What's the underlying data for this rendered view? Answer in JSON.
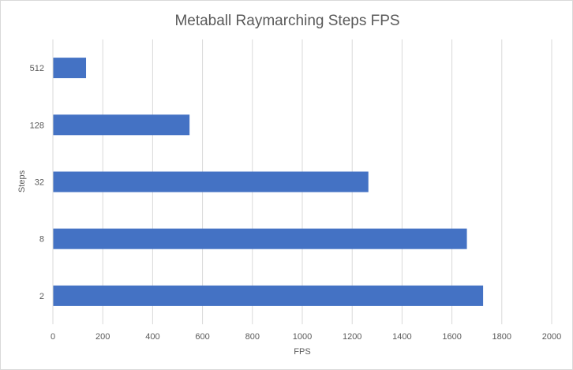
{
  "chart_data": {
    "type": "bar",
    "orientation": "horizontal",
    "title": "Metaball Raymarching Steps FPS",
    "xlabel": "FPS",
    "ylabel": "Steps",
    "categories": [
      "2",
      "8",
      "32",
      "128",
      "512"
    ],
    "values": [
      1725,
      1660,
      1265,
      548,
      133
    ],
    "xlim": [
      0,
      2000
    ],
    "xticks": [
      "0",
      "200",
      "400",
      "600",
      "800",
      "1000",
      "1200",
      "1400",
      "1600",
      "1800",
      "2000"
    ],
    "grid": true,
    "legend": "none",
    "bar_color": "#4472C4",
    "grid_color": "#d9d9d9"
  }
}
